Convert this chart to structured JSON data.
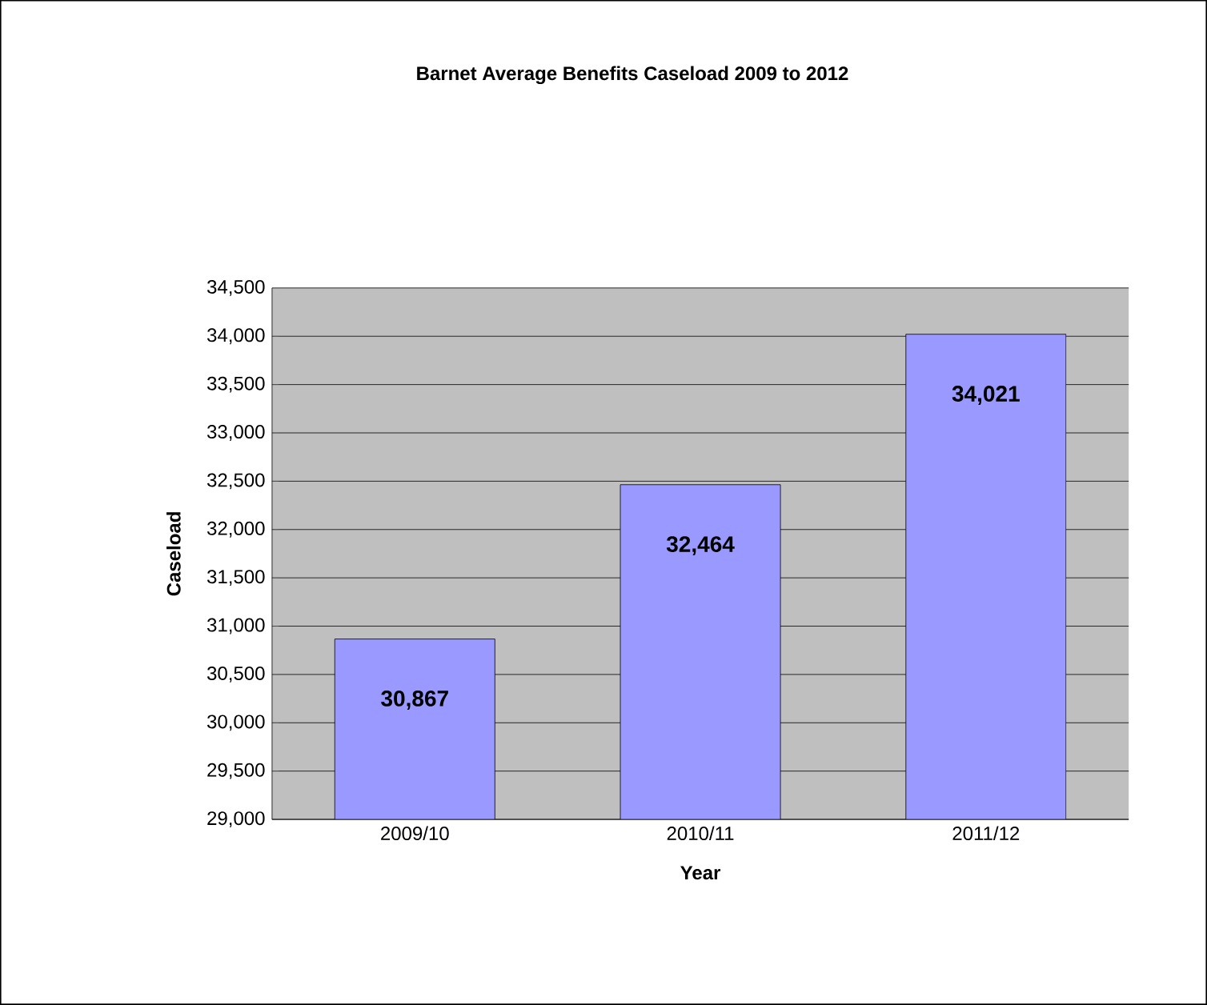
{
  "chart_data": {
    "type": "bar",
    "title": "Barnet Average Benefits Caseload 2009 to 2012",
    "xlabel": "Year",
    "ylabel": "Caseload",
    "categories": [
      "2009/10",
      "2010/11",
      "2011/12"
    ],
    "values": [
      30867,
      32464,
      34021
    ],
    "value_labels": [
      "30,867",
      "32,464",
      "34,021"
    ],
    "color": "#9999ff",
    "ylim": [
      29000,
      34500
    ],
    "yticks": [
      {
        "value": 29000,
        "label": "29,000"
      },
      {
        "value": 29500,
        "label": "29,500"
      },
      {
        "value": 30000,
        "label": "30,000"
      },
      {
        "value": 30500,
        "label": "30,500"
      },
      {
        "value": 31000,
        "label": "31,000"
      },
      {
        "value": 31500,
        "label": "31,500"
      },
      {
        "value": 32000,
        "label": "32,000"
      },
      {
        "value": 32500,
        "label": "32,500"
      },
      {
        "value": 33000,
        "label": "33,000"
      },
      {
        "value": 33500,
        "label": "33,500"
      },
      {
        "value": 34000,
        "label": "34,000"
      },
      {
        "value": 34500,
        "label": "34,500"
      }
    ],
    "grid": "y"
  }
}
